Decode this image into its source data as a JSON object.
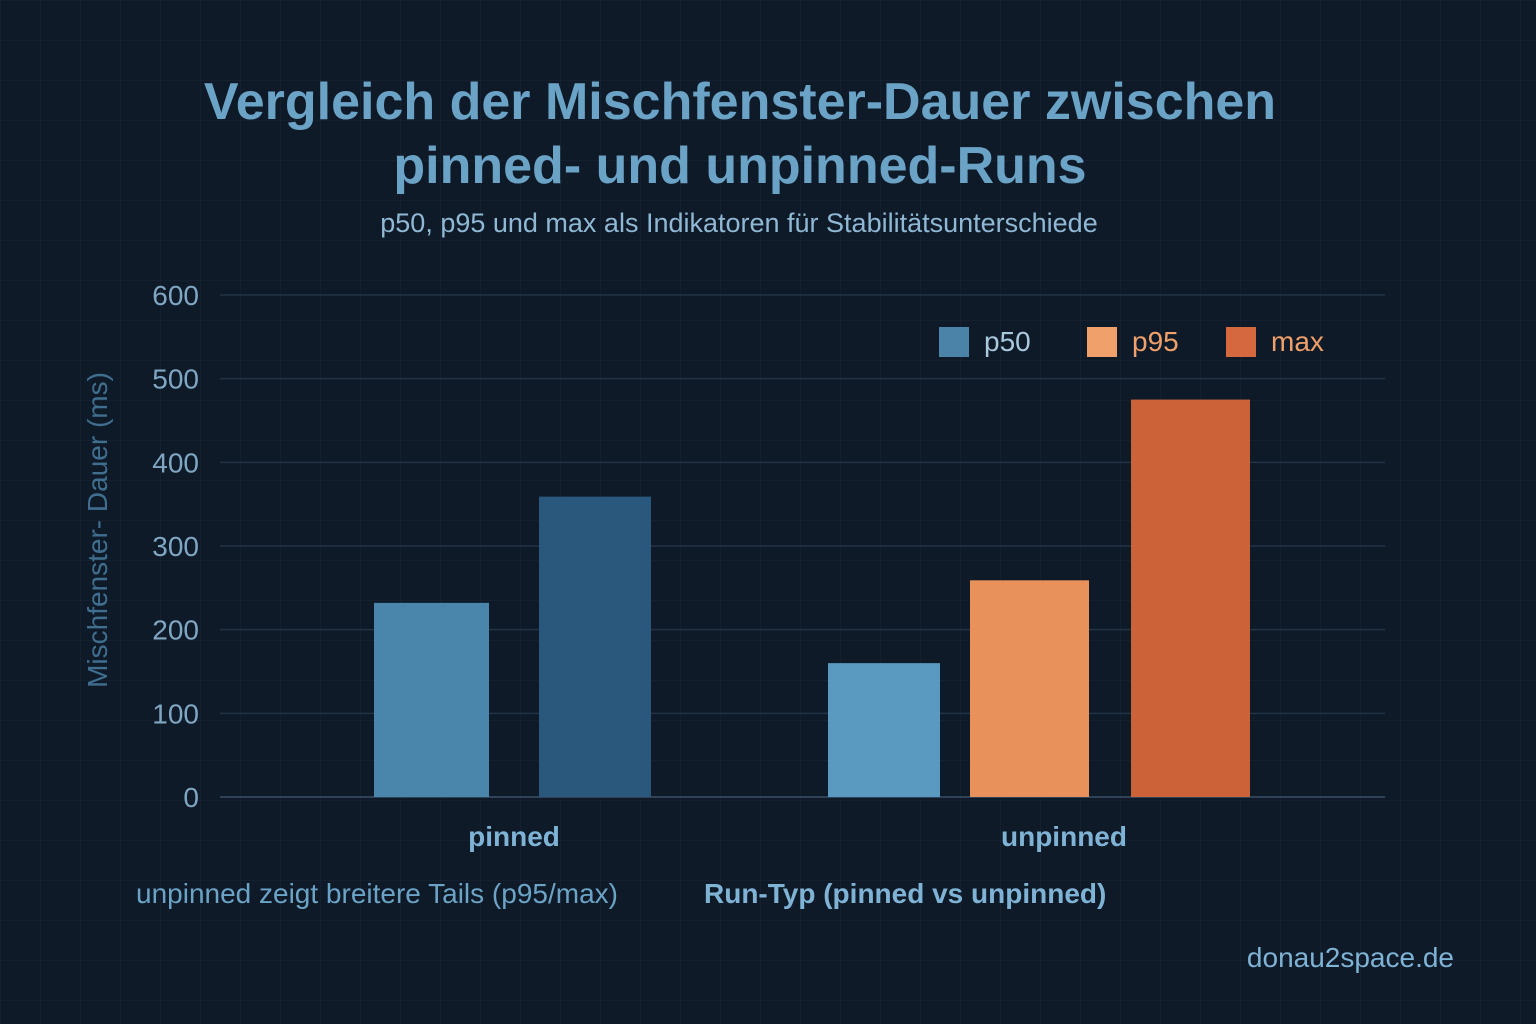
{
  "chart_data": {
    "type": "bar",
    "title_lines": [
      "Vergleich der Mischfenster-Dauer zwischen",
      "pinned- und unpinned-Runs"
    ],
    "subtitle": "p50, p95 und max als Indikatoren für Stabilitätsunterschiede",
    "ylabel": "Mischfenster- Dauer (ms)",
    "xlabel": "Run-Typ (pinned vs unpinned)",
    "ylim": [
      0,
      600
    ],
    "yticks": [
      0,
      100,
      200,
      300,
      400,
      500,
      600
    ],
    "categories": [
      "pinned",
      "unpinned"
    ],
    "legend_position": "top-right",
    "legend": [
      {
        "name": "p50",
        "color": "#4a82a8"
      },
      {
        "name": "p95",
        "color": "#f0a06a"
      },
      {
        "name": "max",
        "color": "#d6683f"
      }
    ],
    "groups": [
      {
        "category": "pinned",
        "bars": [
          {
            "series": "p50",
            "value": 232,
            "color": "#4a86ab"
          },
          {
            "series": "max",
            "value": 359,
            "color": "#2a577c"
          }
        ]
      },
      {
        "category": "unpinned",
        "bars": [
          {
            "series": "p50",
            "value": 160,
            "color": "#5b9ac0"
          },
          {
            "series": "p95",
            "value": 259,
            "color": "#e8915a"
          },
          {
            "series": "max",
            "value": 475,
            "color": "#cc6238"
          }
        ]
      }
    ],
    "footnote": "unpinned zeigt breitere Tails (p95/max)"
  },
  "brand": "donau2space.de"
}
